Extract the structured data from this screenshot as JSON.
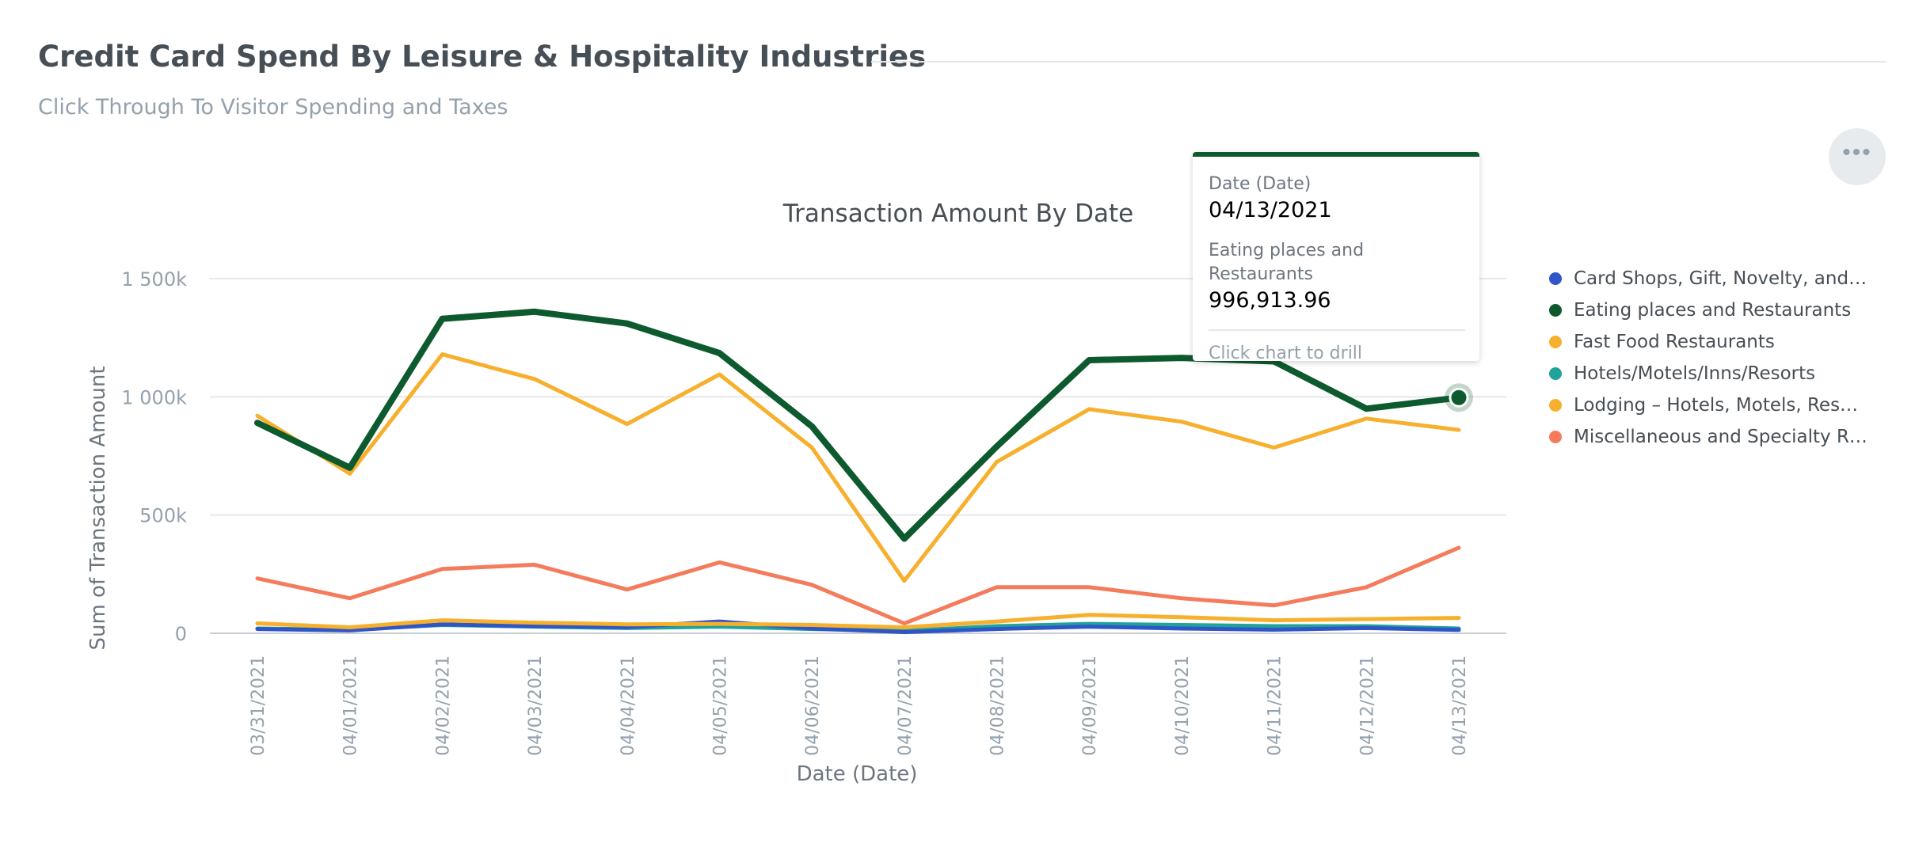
{
  "header": {
    "title": "Credit Card Spend By Leisure & Hospitality Industries",
    "subtitle": "Click Through To Visitor Spending and Taxes",
    "options_icon": "more-horizontal-icon"
  },
  "tooltip": {
    "date_label": "Date (Date)",
    "date_value": "04/13/2021",
    "series_label": "Eating places and Restaurants",
    "series_value": "996,913.96",
    "drill_hint": "Click chart to drill"
  },
  "chart_data": {
    "type": "line",
    "title": "Transaction Amount By Date",
    "xlabel": "Date (Date)",
    "ylabel": "Sum of Transaction Amount",
    "ylim": [
      0,
      1500000
    ],
    "yticks": [
      {
        "value": 0,
        "label": "0"
      },
      {
        "value": 500000,
        "label": "500k"
      },
      {
        "value": 1000000,
        "label": "1 000k"
      },
      {
        "value": 1500000,
        "label": "1 500k"
      }
    ],
    "grid": true,
    "legend_position": "right",
    "categories": [
      "03/31/2021",
      "04/01/2021",
      "04/02/2021",
      "04/03/2021",
      "04/04/2021",
      "04/05/2021",
      "04/06/2021",
      "04/07/2021",
      "04/08/2021",
      "04/09/2021",
      "04/10/2021",
      "04/11/2021",
      "04/12/2021",
      "04/13/2021"
    ],
    "highlight": {
      "series": 1,
      "index": 13
    },
    "series": [
      {
        "name": "Card Shops, Gift, Novelty, and…",
        "color": "#2f55c7",
        "values": [
          18000,
          12000,
          38000,
          30000,
          26000,
          50000,
          20000,
          5000,
          18000,
          28000,
          20000,
          15000,
          22000,
          14000
        ]
      },
      {
        "name": "Eating places and Restaurants",
        "color": "#0d5a2e",
        "values": [
          890000,
          700000,
          1330000,
          1360000,
          1310000,
          1185000,
          875000,
          400000,
          790000,
          1155000,
          1165000,
          1150000,
          950000,
          996913.96
        ]
      },
      {
        "name": "Fast Food Restaurants",
        "color": "#f6b02e",
        "values": [
          920000,
          675000,
          1180000,
          1075000,
          885000,
          1095000,
          785000,
          222000,
          725000,
          948000,
          895000,
          785000,
          908000,
          860000
        ]
      },
      {
        "name": "Hotels/Motels/Inns/Resorts",
        "color": "#1fa39a",
        "values": [
          20000,
          15000,
          35000,
          28000,
          22000,
          28000,
          18000,
          10000,
          30000,
          40000,
          35000,
          30000,
          30000,
          20000
        ]
      },
      {
        "name": "Lodging – Hotels, Motels, Res…",
        "color": "#f6b02e",
        "values": [
          42000,
          25000,
          55000,
          45000,
          38000,
          40000,
          35000,
          25000,
          50000,
          78000,
          68000,
          55000,
          60000,
          65000
        ]
      },
      {
        "name": "Miscellaneous and Specialty R…",
        "color": "#f47b5c",
        "values": [
          232000,
          148000,
          272000,
          290000,
          185000,
          300000,
          205000,
          42000,
          195000,
          195000,
          148000,
          118000,
          195000,
          362000
        ]
      }
    ]
  }
}
